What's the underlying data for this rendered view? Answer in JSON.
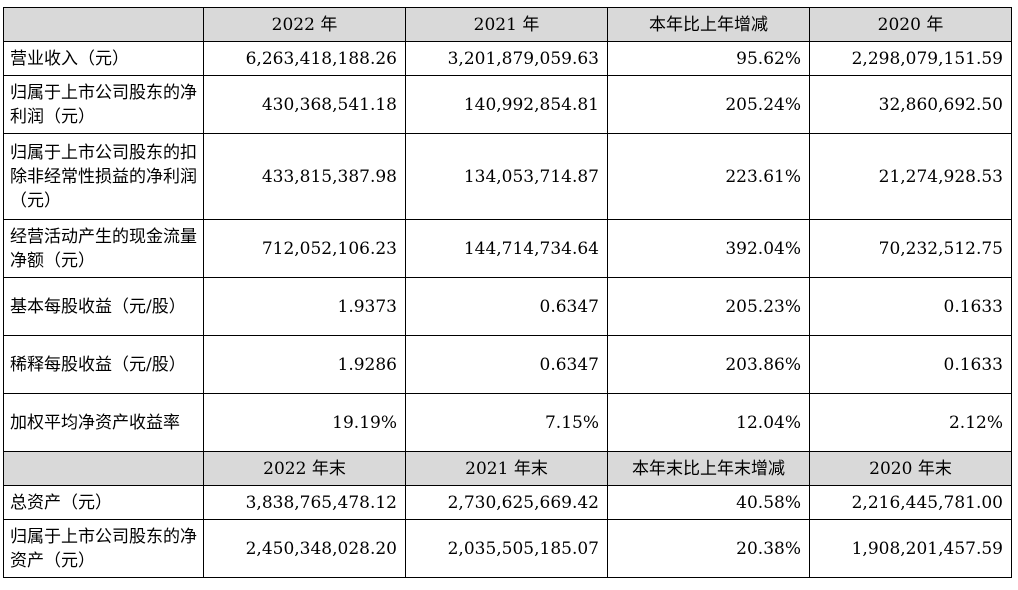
{
  "header_annual": [
    "2022 年",
    "2021 年",
    "本年比上年增减",
    "2020 年"
  ],
  "annual_rows": [
    {
      "label": "营业收入（元）",
      "values": [
        "6,263,418,188.26",
        "3,201,879,059.63",
        "95.62%",
        "2,298,079,151.59"
      ]
    },
    {
      "label": "归属于上市公司股东的净利润（元）",
      "values": [
        "430,368,541.18",
        "140,992,854.81",
        "205.24%",
        "32,860,692.50"
      ]
    },
    {
      "label": "归属于上市公司股东的扣除非经常性损益的净利润（元）",
      "values": [
        "433,815,387.98",
        "134,053,714.87",
        "223.61%",
        "21,274,928.53"
      ]
    },
    {
      "label": "经营活动产生的现金流量净额（元）",
      "values": [
        "712,052,106.23",
        "144,714,734.64",
        "392.04%",
        "70,232,512.75"
      ]
    },
    {
      "label": "基本每股收益（元/股）",
      "values": [
        "1.9373",
        "0.6347",
        "205.23%",
        "0.1633"
      ]
    },
    {
      "label": "稀释每股收益（元/股）",
      "values": [
        "1.9286",
        "0.6347",
        "203.86%",
        "0.1633"
      ]
    },
    {
      "label": "加权平均净资产收益率",
      "values": [
        "19.19%",
        "7.15%",
        "12.04%",
        "2.12%"
      ]
    }
  ],
  "header_yearend": [
    "2022 年末",
    "2021 年末",
    "本年末比上年末增减",
    "2020 年末"
  ],
  "yearend_rows": [
    {
      "label": "总资产（元）",
      "values": [
        "3,838,765,478.12",
        "2,730,625,669.42",
        "40.58%",
        "2,216,445,781.00"
      ]
    },
    {
      "label": "归属于上市公司股东的净资产（元）",
      "values": [
        "2,450,348,028.20",
        "2,035,505,185.07",
        "20.38%",
        "1,908,201,457.59"
      ]
    }
  ]
}
